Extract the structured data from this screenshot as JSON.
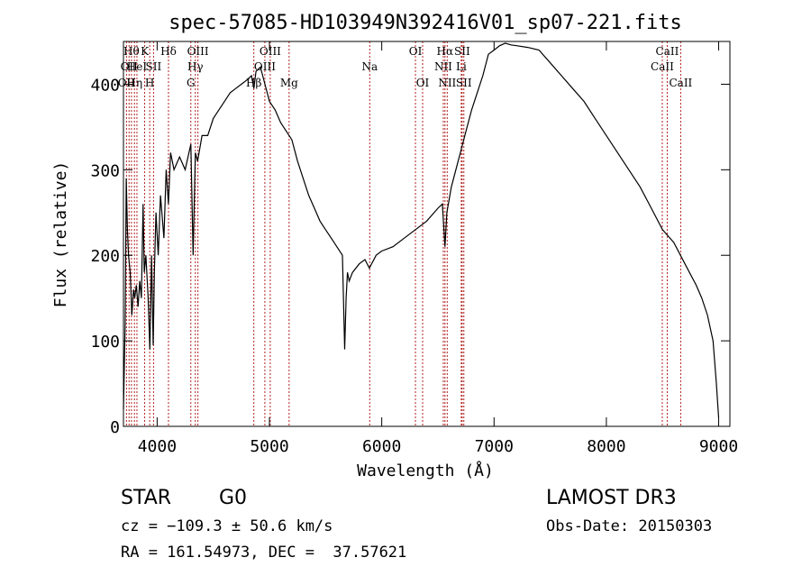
{
  "chart_data": {
    "type": "line",
    "title": "spec-57085-HD103949N392416V01_sp07-221.fits",
    "xlabel": "Wavelength (Å)",
    "ylabel": "Flux (relative)",
    "xlim": [
      3700,
      9100
    ],
    "ylim": [
      0,
      450
    ],
    "xticks": [
      4000,
      5000,
      6000,
      7000,
      8000,
      9000
    ],
    "yticks": [
      0,
      100,
      200,
      300,
      400
    ],
    "grid": false,
    "line_color": "#000000",
    "marker_color": "#b22222",
    "series": [
      {
        "x": [
          3700,
          3715,
          3725,
          3735,
          3745,
          3760,
          3775,
          3790,
          3800,
          3815,
          3830,
          3845,
          3860,
          3875,
          3885,
          3900,
          3920,
          3935,
          3950,
          3965,
          3975,
          3990,
          4010,
          4030,
          4060,
          4080,
          4100,
          4120,
          4150,
          4200,
          4250,
          4300,
          4320,
          4340,
          4360,
          4400,
          4450,
          4500,
          4550,
          4600,
          4650,
          4700,
          4750,
          4800,
          4840,
          4861,
          4880,
          4920,
          4960,
          5000,
          5050,
          5100,
          5150,
          5200,
          5250,
          5300,
          5350,
          5400,
          5450,
          5500,
          5550,
          5600,
          5650,
          5670,
          5683,
          5695,
          5710,
          5740,
          5800,
          5850,
          5890,
          5950,
          6000,
          6100,
          6200,
          6300,
          6400,
          6500,
          6540,
          6563,
          6580,
          6620,
          6660,
          6700,
          6750,
          6800,
          6850,
          6900,
          6950,
          7000,
          7050,
          7100,
          7150,
          7200,
          7300,
          7400,
          7500,
          7600,
          7700,
          7800,
          7900,
          8000,
          8100,
          8200,
          8300,
          8400,
          8500,
          8600,
          8700,
          8800,
          8850,
          8900,
          8950,
          8980,
          9000
        ],
        "y": [
          20,
          120,
          290,
          230,
          200,
          180,
          130,
          160,
          150,
          165,
          140,
          170,
          150,
          260,
          180,
          200,
          150,
          90,
          200,
          95,
          180,
          250,
          200,
          270,
          220,
          300,
          260,
          320,
          300,
          315,
          300,
          330,
          200,
          320,
          310,
          340,
          340,
          360,
          370,
          380,
          390,
          395,
          400,
          405,
          410,
          395,
          415,
          420,
          400,
          380,
          370,
          355,
          345,
          335,
          310,
          290,
          270,
          255,
          240,
          230,
          220,
          210,
          200,
          90,
          150,
          180,
          170,
          180,
          190,
          195,
          185,
          200,
          205,
          210,
          220,
          230,
          240,
          255,
          260,
          210,
          250,
          280,
          300,
          320,
          345,
          370,
          390,
          410,
          435,
          440,
          445,
          448,
          446,
          445,
          443,
          440,
          425,
          410,
          395,
          380,
          360,
          340,
          320,
          300,
          280,
          255,
          230,
          215,
          190,
          165,
          150,
          130,
          100,
          50,
          10
        ]
      }
    ],
    "line_markers": [
      {
        "x": 3727,
        "label": "OII",
        "row": 2
      },
      {
        "x": 3750,
        "label": "OII",
        "row": 1
      },
      {
        "x": 3771,
        "label": "Hθ",
        "row": 0
      },
      {
        "x": 3798,
        "label": "Hη",
        "row": 2
      },
      {
        "x": 3820,
        "label": "HeI",
        "row": 1
      },
      {
        "x": 3889,
        "label": "K",
        "row": 0
      },
      {
        "x": 3934,
        "label": "H",
        "row": 2
      },
      {
        "x": 3968,
        "label": "SII",
        "row": 1
      },
      {
        "x": 4101,
        "label": "Hδ",
        "row": 0
      },
      {
        "x": 4300,
        "label": "G",
        "row": 2
      },
      {
        "x": 4340,
        "label": "Hγ",
        "row": 1
      },
      {
        "x": 4363,
        "label": "OIII",
        "row": 0
      },
      {
        "x": 4861,
        "label": "Hβ",
        "row": 2
      },
      {
        "x": 4959,
        "label": "OIII",
        "row": 1
      },
      {
        "x": 5007,
        "label": "OIII",
        "row": 0
      },
      {
        "x": 5175,
        "label": "Mg",
        "row": 2
      },
      {
        "x": 5893,
        "label": "Na",
        "row": 1
      },
      {
        "x": 6300,
        "label": "OI",
        "row": 0
      },
      {
        "x": 6364,
        "label": "OI",
        "row": 2
      },
      {
        "x": 6548,
        "label": "NII",
        "row": 1
      },
      {
        "x": 6563,
        "label": "Hα",
        "row": 0
      },
      {
        "x": 6583,
        "label": "NII",
        "row": 2
      },
      {
        "x": 6708,
        "label": "Li",
        "row": 1
      },
      {
        "x": 6716,
        "label": "SII",
        "row": 0
      },
      {
        "x": 6731,
        "label": "SII",
        "row": 2
      },
      {
        "x": 8498,
        "label": "CaII",
        "row": 1
      },
      {
        "x": 8542,
        "label": "CaII",
        "row": 0
      },
      {
        "x": 8662,
        "label": "CaII",
        "row": 2
      }
    ]
  },
  "info": {
    "class": "STAR",
    "subclass": "G0",
    "survey": "LAMOST DR3",
    "cz": "cz = −109.3 ± 50.6 km/s",
    "obs_date": "Obs-Date: 20150303",
    "radec": "RA = 161.54973, DEC =  37.57621"
  }
}
